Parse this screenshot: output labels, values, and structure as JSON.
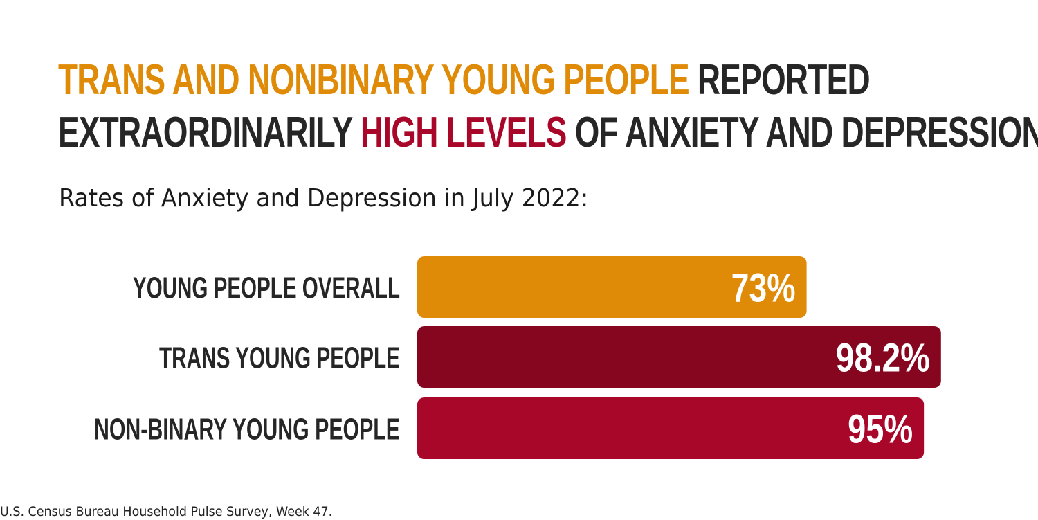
{
  "title": {
    "line1_highlight": "TRANS AND NONBINARY YOUNG PEOPLE",
    "line1_rest": " REPORTED",
    "line2_start": "EXTRAORDINARILY ",
    "line2_highlight": "HIGH LEVELS",
    "line2_rest": " OF ANXIETY AND DEPRESSION."
  },
  "subtitle": "Rates of Anxiety and Depression in July 2022:",
  "source": "U.S. Census Bureau Household Pulse Survey, Week 47.",
  "colors": {
    "text_dark": "#262626",
    "highlight_orange": "#E08B07",
    "highlight_red": "#A8072A"
  },
  "chart_data": {
    "type": "bar",
    "orientation": "horizontal",
    "categories": [
      "YOUNG PEOPLE OVERALL",
      "TRANS YOUNG PEOPLE",
      "NON-BINARY YOUNG PEOPLE"
    ],
    "values": [
      73,
      98.2,
      95
    ],
    "value_labels": [
      "73%",
      "98.2%",
      "95%"
    ],
    "bar_colors": [
      "#E08B07",
      "#85061E",
      "#A8072A"
    ],
    "xlim": [
      0,
      100
    ],
    "grid": false,
    "legend": "none"
  }
}
